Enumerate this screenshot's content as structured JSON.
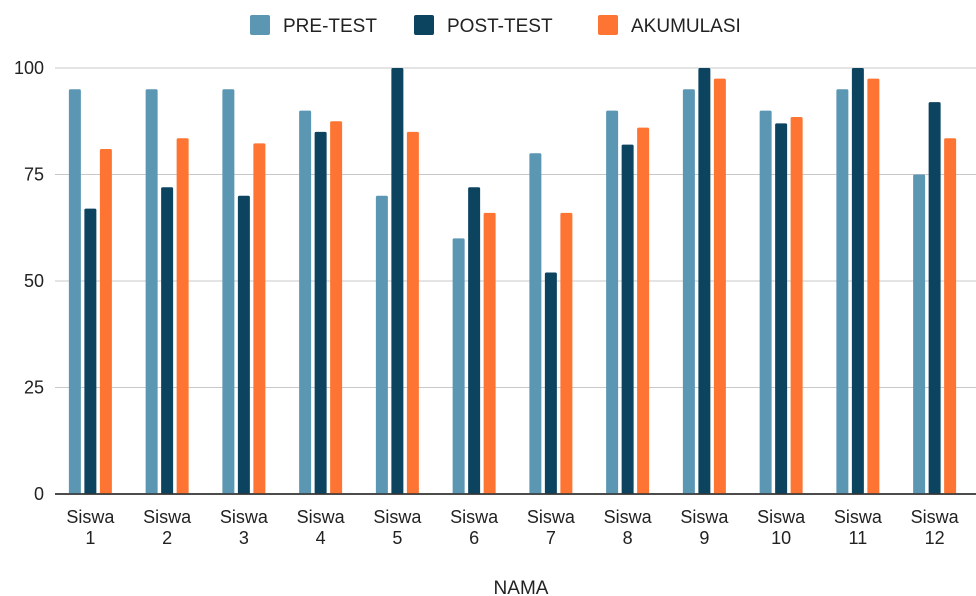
{
  "chart_data": {
    "type": "bar",
    "categories": [
      "Siswa 1",
      "Siswa 2",
      "Siswa 3",
      "Siswa 4",
      "Siswa 5",
      "Siswa 6",
      "Siswa 7",
      "Siswa 8",
      "Siswa 9",
      "Siswa 10",
      "Siswa 11",
      "Siswa 12"
    ],
    "series": [
      {
        "name": "PRE-TEST",
        "color": "#5b96b3",
        "values": [
          95,
          95,
          95,
          90,
          70,
          60,
          80,
          90,
          95,
          90,
          95,
          75
        ]
      },
      {
        "name": "POST-TEST",
        "color": "#0c4460",
        "values": [
          67,
          72,
          70,
          85,
          100,
          72,
          52,
          82,
          100,
          87,
          100,
          92
        ]
      },
      {
        "name": "AKUMULASI",
        "color": "#fd7433",
        "values": [
          81,
          83.5,
          82.3,
          87.5,
          85,
          66,
          66,
          86,
          97.5,
          88.5,
          97.5,
          83.5
        ]
      }
    ],
    "title": "",
    "xlabel": "NAMA",
    "ylabel": "",
    "ylim": [
      0,
      100
    ],
    "yticks": [
      0,
      25,
      50,
      75,
      100
    ],
    "grid": true,
    "legend": "top-center"
  }
}
